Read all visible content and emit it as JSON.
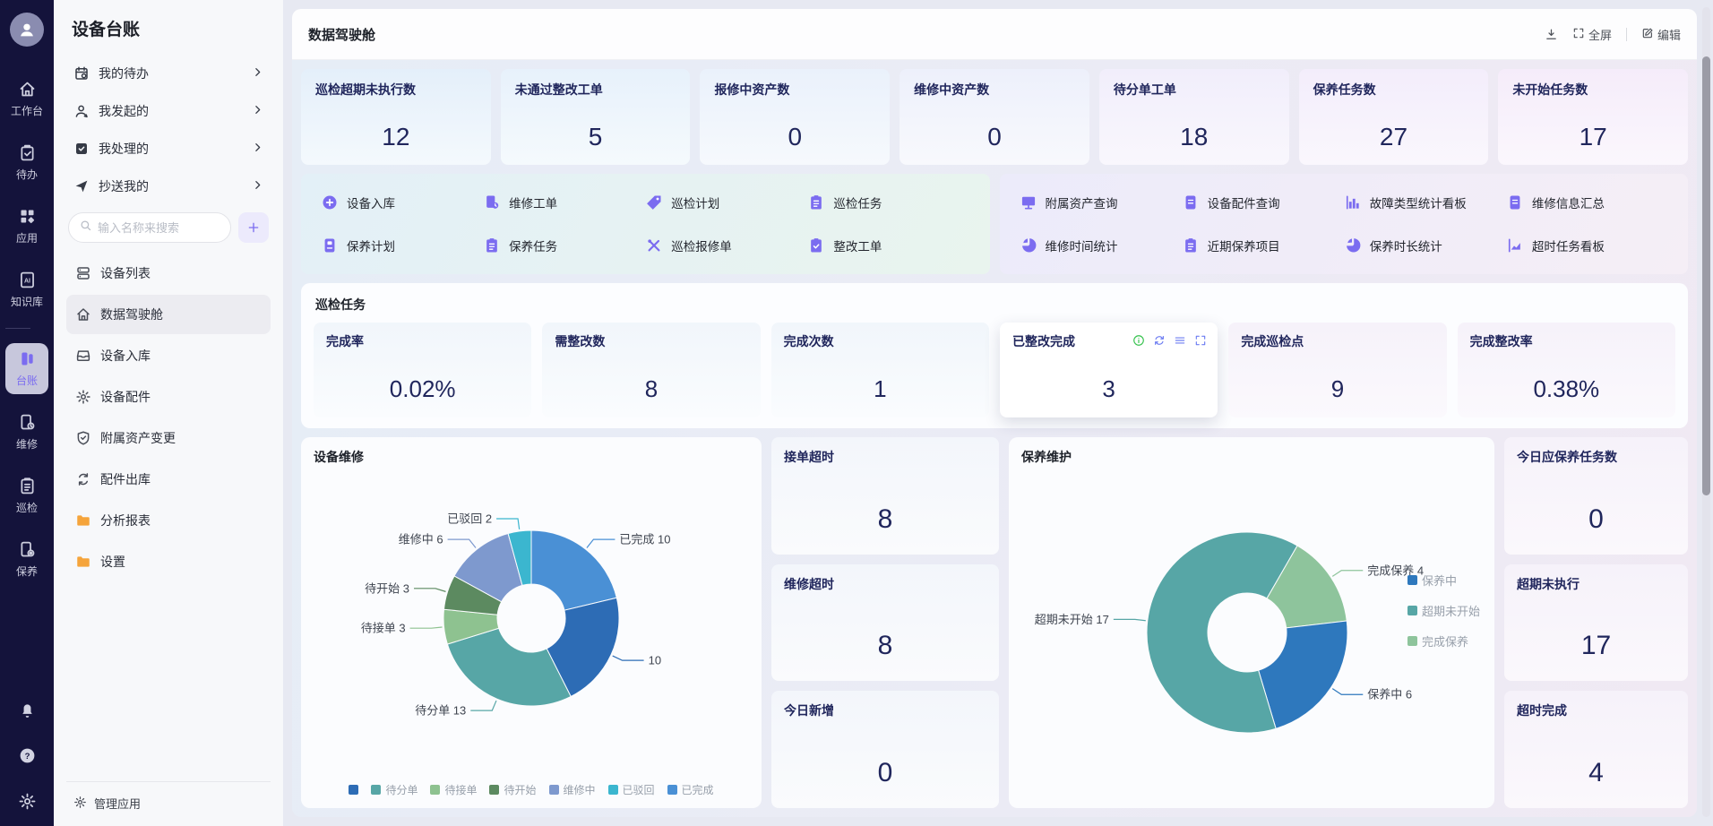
{
  "rail": {
    "items": [
      {
        "label": "工作台",
        "icon": "home"
      },
      {
        "label": "待办",
        "icon": "clipboard-check"
      },
      {
        "label": "应用",
        "icon": "grid"
      },
      {
        "label": "知识库",
        "icon": "knowledge"
      },
      {
        "label": "台账",
        "icon": "ledger",
        "active": true,
        "divider_before": true
      },
      {
        "label": "维修",
        "icon": "device-clock"
      },
      {
        "label": "巡检",
        "icon": "clipboard-lines"
      },
      {
        "label": "保养",
        "icon": "device-gear"
      }
    ],
    "bottom": [
      {
        "name": "notifications",
        "icon": "bell"
      },
      {
        "name": "help",
        "icon": "help"
      },
      {
        "name": "settings",
        "icon": "gear"
      }
    ]
  },
  "sidebar": {
    "title": "设备台账",
    "quick_links": [
      {
        "label": "我的待办",
        "icon": "calendar-clock"
      },
      {
        "label": "我发起的",
        "icon": "person"
      },
      {
        "label": "我处理的",
        "icon": "check-square"
      },
      {
        "label": "抄送我的",
        "icon": "paper-plane"
      }
    ],
    "search_placeholder": "输入名称来搜索",
    "menu": [
      {
        "label": "设备列表",
        "icon": "list-rows"
      },
      {
        "label": "数据驾驶舱",
        "icon": "home-outline",
        "active": true
      },
      {
        "label": "设备入库",
        "icon": "inbox"
      },
      {
        "label": "设备配件",
        "icon": "gear-outline"
      },
      {
        "label": "附属资产变更",
        "icon": "shield-check"
      },
      {
        "label": "配件出库",
        "icon": "swap"
      },
      {
        "label": "分析报表",
        "icon": "folder"
      },
      {
        "label": "设置",
        "icon": "folder"
      }
    ],
    "footer_label": "管理应用"
  },
  "header": {
    "title": "数据驾驶舱",
    "fullscreen_label": "全屏",
    "edit_label": "编辑"
  },
  "stat_cards_top": [
    {
      "label": "巡检超期未执行数",
      "value": "12"
    },
    {
      "label": "未通过整改工单",
      "value": "5"
    },
    {
      "label": "报修中资产数",
      "value": "0"
    },
    {
      "label": "维修中资产数",
      "value": "0"
    },
    {
      "label": "待分单工单",
      "value": "18"
    },
    {
      "label": "保养任务数",
      "value": "27"
    },
    {
      "label": "未开始任务数",
      "value": "17"
    }
  ],
  "quick_actions_left": [
    {
      "label": "设备入库",
      "icon": "plus-circle"
    },
    {
      "label": "维修工单",
      "icon": "device-badge"
    },
    {
      "label": "巡检计划",
      "icon": "tag"
    },
    {
      "label": "巡检任务",
      "icon": "clipboard-list-filled"
    },
    {
      "label": "保养计划",
      "icon": "doc-blocks"
    },
    {
      "label": "保养任务",
      "icon": "clipboard-list-filled"
    },
    {
      "label": "巡检报修单",
      "icon": "tools"
    },
    {
      "label": "整改工单",
      "icon": "clipboard-check-filled"
    }
  ],
  "quick_actions_right": [
    {
      "label": "附属资产查询",
      "icon": "monitor"
    },
    {
      "label": "设备配件查询",
      "icon": "doc-lines"
    },
    {
      "label": "故障类型统计看板",
      "icon": "bar-chart"
    },
    {
      "label": "维修信息汇总",
      "icon": "doc-lines"
    },
    {
      "label": "维修时间统计",
      "icon": "pie"
    },
    {
      "label": "近期保养项目",
      "icon": "clipboard-list-filled"
    },
    {
      "label": "保养时长统计",
      "icon": "pie"
    },
    {
      "label": "超时任务看板",
      "icon": "area-chart"
    }
  ],
  "inspection_section": {
    "title": "巡检任务",
    "cards": [
      {
        "label": "完成率",
        "value": "0.02%"
      },
      {
        "label": "需整改数",
        "value": "8"
      },
      {
        "label": "完成次数",
        "value": "1"
      },
      {
        "label": "已整改完成",
        "value": "3",
        "hovered": true
      },
      {
        "label": "完成巡检点",
        "value": "9"
      },
      {
        "label": "完成整改率",
        "value": "0.38%"
      }
    ]
  },
  "repair_side_stats": [
    {
      "label": "接单超时",
      "value": "8"
    },
    {
      "label": "维修超时",
      "value": "8"
    },
    {
      "label": "今日新增",
      "value": "0"
    }
  ],
  "maintenance_side_stats": [
    {
      "label": "今日应保养任务数",
      "value": "0"
    },
    {
      "label": "超期未执行",
      "value": "17"
    },
    {
      "label": "超时完成",
      "value": "4"
    }
  ],
  "chart_data": [
    {
      "type": "pie",
      "title": "设备维修",
      "total": 47,
      "start_angle": 0,
      "segments": [
        {
          "name": "已完成",
          "value": 10,
          "color": "#4a90d5"
        },
        {
          "name": "",
          "value": 10,
          "color": "#2d6cb5"
        },
        {
          "name": "待分单",
          "value": 13,
          "color": "#57a6a6"
        },
        {
          "name": "待接单",
          "value": 3,
          "color": "#8ec290"
        },
        {
          "name": "待开始",
          "value": 3,
          "color": "#5c8a60"
        },
        {
          "name": "维修中",
          "value": 6,
          "color": "#7e99ce"
        },
        {
          "name": "已驳回",
          "value": 2,
          "color": "#3bb6cf"
        }
      ],
      "legend": [
        {
          "name": "",
          "color": "#2d6cb5"
        },
        {
          "name": "待分单",
          "color": "#57a6a6"
        },
        {
          "name": "待接单",
          "color": "#8ec290"
        },
        {
          "name": "待开始",
          "color": "#5c8a60"
        },
        {
          "name": "维修中",
          "color": "#7e99ce"
        },
        {
          "name": "已驳回",
          "color": "#3bb6cf"
        },
        {
          "name": "已完成",
          "color": "#4a90d5"
        }
      ],
      "legend_position": "bottom"
    },
    {
      "type": "pie",
      "title": "保养维护",
      "total": 27,
      "start_angle": 30,
      "segments": [
        {
          "name": "完成保养",
          "value": 4,
          "color": "#8ec49c"
        },
        {
          "name": "保养中",
          "value": 6,
          "color": "#2e78bd"
        },
        {
          "name": "超期未开始",
          "value": 17,
          "color": "#57a6a6"
        }
      ],
      "legend": [
        {
          "name": "保养中",
          "color": "#2e78bd"
        },
        {
          "name": "超期未开始",
          "color": "#57a6a6"
        },
        {
          "name": "完成保养",
          "color": "#8ec49c"
        }
      ],
      "legend_position": "right"
    }
  ],
  "colors": {
    "accent_purple": "#7b6cf0",
    "folder_orange": "#f5a43b",
    "toolbar_green": "#35c24d",
    "toolbar_blue": "#6d7df2",
    "rail_bg": "#14133b"
  }
}
